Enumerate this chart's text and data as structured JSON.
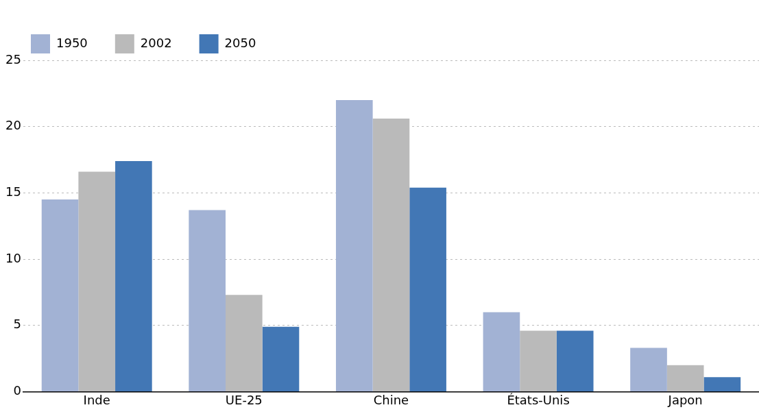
{
  "chart_data": {
    "type": "bar",
    "categories": [
      "Inde",
      "UE-25",
      "Chine",
      "États-Unis",
      "Japon"
    ],
    "series": [
      {
        "name": "1950",
        "color": "#a2b2d4",
        "values": [
          14.5,
          13.7,
          22.0,
          6.0,
          3.3
        ]
      },
      {
        "name": "2002",
        "color": "#bababa",
        "values": [
          16.6,
          7.3,
          20.6,
          4.6,
          2.0
        ]
      },
      {
        "name": "2050",
        "color": "#4277b5",
        "values": [
          17.4,
          4.9,
          15.4,
          4.6,
          1.1
        ]
      }
    ],
    "ylim": [
      0,
      25
    ],
    "yticks": [
      0,
      5,
      10,
      15,
      20,
      25
    ],
    "grid": "y",
    "legend": "top left"
  }
}
